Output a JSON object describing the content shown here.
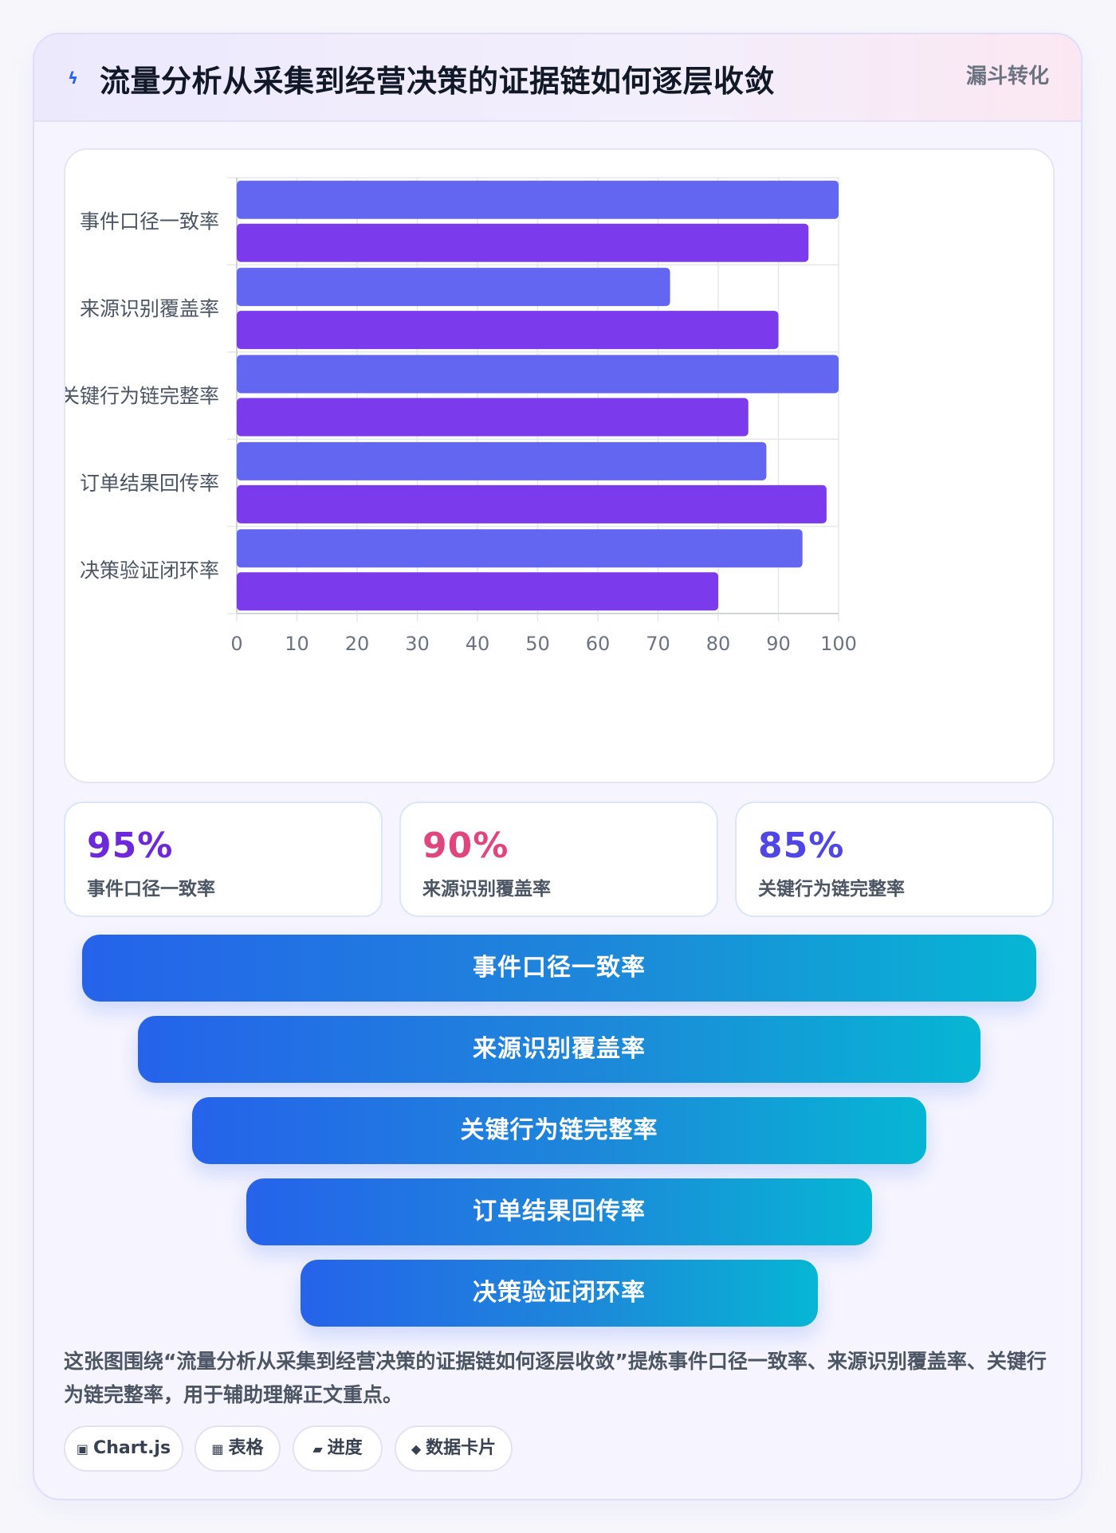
{
  "header": {
    "icon": "lightning-icon",
    "title": "流量分析从采集到经营决策的证据链如何逐层收敛",
    "tag": "漏斗转化"
  },
  "chart_data": {
    "type": "bar",
    "orientation": "horizontal",
    "categories": [
      "事件口径一致率",
      "来源识别覆盖率",
      "关键行为链完整率",
      "订单结果回传率",
      "决策验证闭环率"
    ],
    "series": [
      {
        "values": [
          100,
          72,
          100,
          88,
          94
        ],
        "color": "#6366f1"
      },
      {
        "values": [
          95,
          90,
          85,
          98,
          80
        ],
        "color": "#7c3aed"
      }
    ],
    "xlim": [
      0,
      100
    ],
    "xticks": [
      0,
      10,
      20,
      30,
      40,
      50,
      60,
      70,
      80,
      90,
      100
    ],
    "grid": true,
    "legend": "none"
  },
  "stats": [
    {
      "value": "95%",
      "label": "事件口径一致率",
      "color": "#6d28d9"
    },
    {
      "value": "90%",
      "label": "来源识别覆盖率",
      "color": "#e0457b"
    },
    {
      "value": "85%",
      "label": "关键行为链完整率",
      "color": "#4f46e5"
    }
  ],
  "funnel": [
    "事件口径一致率",
    "来源识别覆盖率",
    "关键行为链完整率",
    "订单结果回传率",
    "决策验证闭环率"
  ],
  "summary": "这张图围绕“流量分析从采集到经营决策的证据链如何逐层收敛”提炼事件口径一致率、来源识别覆盖率、关键行为链完整率，用于辅助理解正文重点。",
  "chips": [
    {
      "icon": "▣",
      "icon_name": "chart-icon",
      "label": "Chart.js"
    },
    {
      "icon": "▦",
      "icon_name": "table-icon",
      "label": "表格"
    },
    {
      "icon": "▰",
      "icon_name": "progress-icon",
      "label": "进度"
    },
    {
      "icon": "◆",
      "icon_name": "card-icon",
      "label": "数据卡片"
    }
  ]
}
